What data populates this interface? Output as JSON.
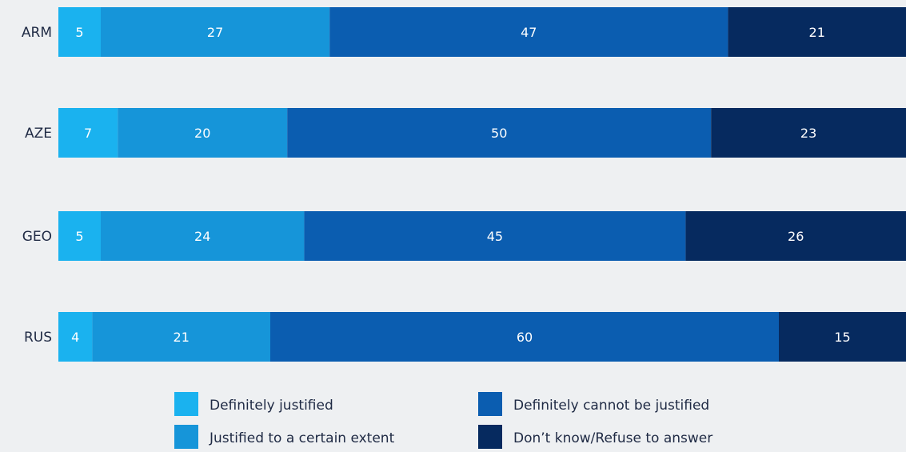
{
  "chart_data": {
    "type": "bar",
    "orientation": "horizontal",
    "stacked": true,
    "categories": [
      "ARM",
      "AZE",
      "GEO",
      "RUS"
    ],
    "series": [
      {
        "name": "Definitely justified",
        "values": [
          5,
          7,
          5,
          4
        ],
        "color": "#1ab2ef"
      },
      {
        "name": "Justified to a certain extent",
        "values": [
          27,
          20,
          24,
          21
        ],
        "color": "#1695d9"
      },
      {
        "name": "Definitely cannot be justified",
        "values": [
          47,
          50,
          45,
          60
        ],
        "color": "#0b5db0"
      },
      {
        "name": "Don’t know/Refuse to answer",
        "values": [
          21,
          23,
          26,
          15
        ],
        "color": "#062a5f"
      }
    ],
    "xlim": [
      0,
      100
    ],
    "grid": false,
    "legend_position": "bottom"
  }
}
